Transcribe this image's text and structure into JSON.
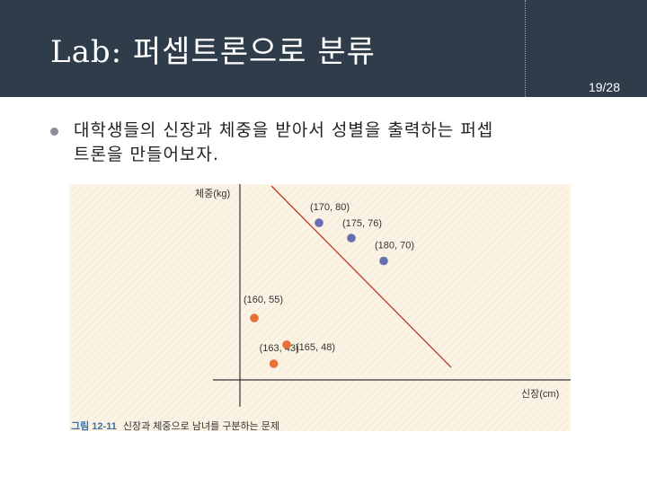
{
  "header": {
    "title": "Lab: 퍼셉트론으로 분류",
    "page": "19/28"
  },
  "body": {
    "bullet_line1": "대학생들의 신장과 체중을 받아서 성별을 출력하는 퍼셉",
    "bullet_line2": "트론을 만들어보자."
  },
  "colors": {
    "header_bg": "#2f3c4a",
    "male_points": "#6670b0",
    "female_points": "#e8703a",
    "decision_line": "#c0392b",
    "caption_accent": "#3a6fb0"
  },
  "chart_data": {
    "type": "scatter",
    "xlabel": "신장(cm)",
    "ylabel": "체중(kg)",
    "series": [
      {
        "points": [
          {
            "x": 170,
            "y": 80,
            "label": "(170, 80)"
          },
          {
            "x": 175,
            "y": 76,
            "label": "(175, 76)"
          },
          {
            "x": 180,
            "y": 70,
            "label": "(180, 70)"
          }
        ],
        "color": "#6670b0"
      },
      {
        "points": [
          {
            "x": 160,
            "y": 55,
            "label": "(160, 55)"
          },
          {
            "x": 163,
            "y": 43,
            "label": "(163, 43)"
          },
          {
            "x": 165,
            "y": 48,
            "label": "(165, 48)"
          }
        ],
        "color": "#e8703a"
      }
    ],
    "decision_boundary": true
  },
  "caption": {
    "number": "그림 12-11",
    "text": "신장과 체중으로 남녀를 구분하는 문제"
  }
}
